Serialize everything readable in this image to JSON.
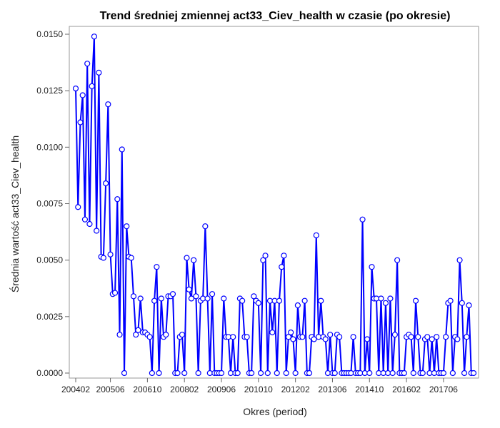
{
  "chart_data": {
    "type": "line",
    "title": "Trend średniej zmiennej act33_Ciev_health w czasie (po okresie)",
    "xlabel": "Okres (period)",
    "ylabel": "Średnia wartość act33_Ciev_health",
    "ylim": [
      0,
      0.0155
    ],
    "yticks": [
      "0.0000",
      "0.0025",
      "0.0050",
      "0.0075",
      "0.0100",
      "0.0125",
      "0.0150"
    ],
    "ytick_values": [
      0,
      0.0025,
      0.005,
      0.0075,
      0.01,
      0.0125,
      0.015
    ],
    "xticks": [
      {
        "label": "200402",
        "index": 0
      },
      {
        "label": "200506",
        "index": 15
      },
      {
        "label": "200610",
        "index": 31
      },
      {
        "label": "200802",
        "index": 47
      },
      {
        "label": "200906",
        "index": 63
      },
      {
        "label": "201010",
        "index": 79
      },
      {
        "label": "201202",
        "index": 95
      },
      {
        "label": "201306",
        "index": 111
      },
      {
        "label": "201410",
        "index": 127
      },
      {
        "label": "201602",
        "index": 143
      },
      {
        "label": "201706",
        "index": 159
      }
    ],
    "grid": false,
    "legend": "none",
    "series": [
      {
        "color": "#0000ff",
        "values": [
          0.0126,
          0.00735,
          0.0111,
          0.0123,
          0.0068,
          0.0137,
          0.0066,
          0.0127,
          0.0149,
          0.0063,
          0.0133,
          0.00515,
          0.0051,
          0.0084,
          0.0119,
          0.00525,
          0.0035,
          0.00355,
          0.0077,
          0.0017,
          0.0099,
          0,
          0.0065,
          0.00515,
          0.0051,
          0.0034,
          0.0017,
          0.0019,
          0.0033,
          0.0018,
          0.0018,
          0.0017,
          0.0016,
          0,
          0.0032,
          0.0047,
          0,
          0.0033,
          0.0016,
          0.0017,
          0.0034,
          0.0034,
          0.0035,
          0,
          0,
          0.0016,
          0.0017,
          0,
          0.0051,
          0.0037,
          0.0033,
          0.005,
          0.0034,
          0,
          0.0032,
          0.0033,
          0.0065,
          0.0033,
          0,
          0.0035,
          0,
          0,
          0,
          0,
          0.0033,
          0.0016,
          0.0016,
          0,
          0.0016,
          0,
          0,
          0.0033,
          0.0032,
          0.0016,
          0.0016,
          0,
          0,
          0.0034,
          0.0032,
          0.0031,
          0,
          0.005,
          0.0052,
          0,
          0.0032,
          0.0018,
          0.0032,
          0,
          0.0032,
          0.0047,
          0.0052,
          0,
          0.0016,
          0.0018,
          0.0015,
          0,
          0.003,
          0.0016,
          0.0016,
          0.0032,
          0,
          0,
          0.0016,
          0.0015,
          0.0061,
          0.0016,
          0.0032,
          0.0016,
          0.0015,
          0,
          0.0017,
          0,
          0,
          0.0017,
          0.0016,
          0,
          0,
          0,
          0,
          0,
          0.0016,
          0,
          0,
          0,
          0.0068,
          0,
          0.0015,
          0,
          0.0047,
          0.0033,
          0.0033,
          0,
          0.0033,
          0,
          0.0031,
          0,
          0.0033,
          0,
          0.0017,
          0.005,
          0,
          0,
          0,
          0.0016,
          0.0017,
          0.0016,
          0,
          0.0032,
          0.0016,
          0,
          0,
          0.0015,
          0.0016,
          0,
          0.0015,
          0,
          0.0016,
          0,
          0,
          0,
          0.0016,
          0.0031,
          0.0032,
          0,
          0.0016,
          0.0015,
          0.005,
          0.0031,
          0,
          0.0016,
          0.003,
          0,
          0
        ]
      }
    ]
  }
}
